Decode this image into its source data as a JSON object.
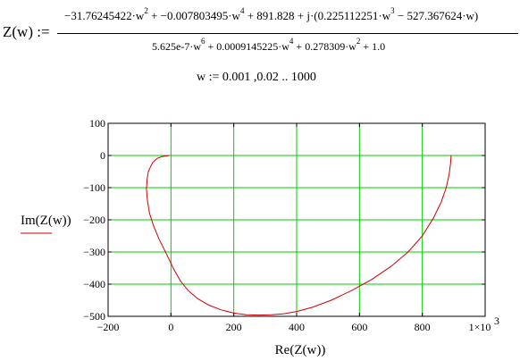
{
  "equation": {
    "lhs": "Z(w) :=",
    "numerator": {
      "t1": "−31.76245422·w",
      "p1": "2",
      "t2": " + −0.007803495·w",
      "p2": "4",
      "t3": " + 891.828 + j·(0.225112251·w",
      "p3": "3",
      "t4": " − 527.367624·w)"
    },
    "denominator": {
      "t1": "5.625e-7·w",
      "p1": "6",
      "t2": " + 0.0009145225·w",
      "p2": "4",
      "t3": " + 0.278309·w",
      "p3": "2",
      "t4": " + 1.0"
    },
    "range_def": "w := 0.001 ,0.02 .. 1000"
  },
  "chart_data": {
    "type": "line",
    "xlabel": "Re(Z(w))",
    "ylabel": "Im(Z(w))",
    "xlim": [
      -200,
      1000
    ],
    "ylim": [
      -500,
      100
    ],
    "x_ticks": [
      "−200",
      "0",
      "200",
      "400",
      "600",
      "800",
      "1×10"
    ],
    "x_tick_exp": "3",
    "y_ticks": [
      "100",
      "0",
      "−100",
      "−200",
      "−300",
      "−400",
      "−500"
    ],
    "grid": true,
    "series": [
      {
        "color": "#cc0000",
        "x": [
          891.8,
          890,
          885,
          876,
          860,
          835,
          800,
          755,
          700,
          640,
          575,
          510,
          450,
          400,
          360,
          320,
          280,
          240,
          200,
          160,
          120,
          85,
          55,
          30,
          10,
          -5,
          -20,
          -38,
          -55,
          -68,
          -75,
          -78,
          -76,
          -72,
          -65,
          -58,
          -50,
          -42,
          -30,
          -15,
          -5
        ],
        "y": [
          0,
          -25,
          -60,
          -100,
          -145,
          -195,
          -250,
          -300,
          -345,
          -385,
          -420,
          -450,
          -472,
          -485,
          -492,
          -495,
          -496,
          -495,
          -490,
          -480,
          -465,
          -445,
          -420,
          -390,
          -355,
          -325,
          -295,
          -260,
          -220,
          -180,
          -140,
          -105,
          -75,
          -50,
          -35,
          -22,
          -14,
          -8,
          -4,
          -1,
          0
        ]
      }
    ]
  }
}
